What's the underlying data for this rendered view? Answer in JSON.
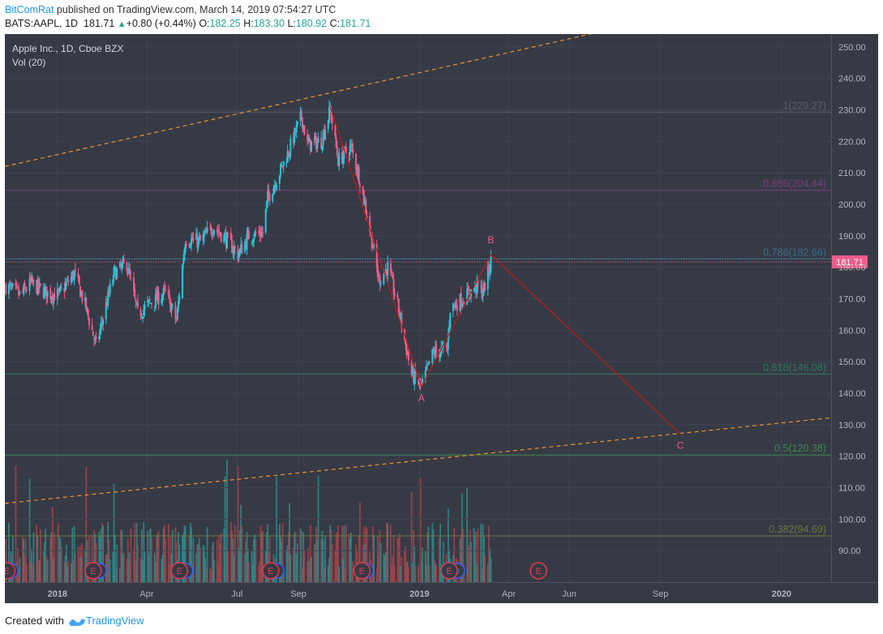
{
  "header": {
    "author": "BitComRat",
    "published_text": " published on TradingView.com, March 14, 2019 07:54:27 UTC",
    "symbol": "BATS:AAPL, 1D",
    "last": "181.71",
    "change": "+0.80 (+0.44%)",
    "o_label": "O:",
    "o_value": "182.25",
    "h_label": "H:",
    "h_value": "183.30",
    "l_label": "L:",
    "l_value": "180.92",
    "c_label": "C:",
    "c_value": "181.71"
  },
  "legend": {
    "title": "Apple Inc., 1D, Cboe BZX",
    "volume": "Vol (20)"
  },
  "footer": {
    "created_with": "Created with",
    "brand": "TradingView"
  },
  "colors": {
    "background": "#363a45",
    "up": "#26c6da",
    "down": "#ef5b8a",
    "price_tag": "#ef5b8a",
    "wave_line": "#b71c1c",
    "channel": "#f0932b",
    "vol_up": "#2e8b8b",
    "vol_down": "#a3434a"
  },
  "chart_data": {
    "type": "candlestick",
    "title": "Apple Inc., 1D, Cboe BZX",
    "y_ticks": [
      90,
      100,
      110,
      120,
      130,
      140,
      150,
      160,
      170,
      180,
      190,
      200,
      210,
      220,
      230,
      240,
      250
    ],
    "y_range": [
      80,
      252
    ],
    "x_ticks": [
      {
        "label": "2018",
        "date": "2018-01-01",
        "bold": true
      },
      {
        "label": "Apr",
        "date": "2018-04-01",
        "bold": false
      },
      {
        "label": "Jul",
        "date": "2018-07-01",
        "bold": false
      },
      {
        "label": "Sep",
        "date": "2018-09-01",
        "bold": false
      },
      {
        "label": "2019",
        "date": "2019-01-01",
        "bold": true
      },
      {
        "label": "Apr",
        "date": "2019-04-01",
        "bold": false
      },
      {
        "label": "Jun",
        "date": "2019-06-01",
        "bold": false
      },
      {
        "label": "Sep",
        "date": "2019-09-01",
        "bold": false
      },
      {
        "label": "2020",
        "date": "2020-01-01",
        "bold": true
      }
    ],
    "x_range": [
      "2017-11-09",
      "2020-02-20"
    ],
    "last_price": 181.71,
    "last_price_label": "181.71",
    "price_path": [
      [
        "2017-11-10",
        174
      ],
      [
        "2017-11-25",
        171
      ],
      [
        "2017-12-05",
        175
      ],
      [
        "2017-12-20",
        172
      ],
      [
        "2018-01-02",
        171
      ],
      [
        "2018-01-18",
        178
      ],
      [
        "2018-01-29",
        168
      ],
      [
        "2018-02-09",
        155
      ],
      [
        "2018-02-27",
        178
      ],
      [
        "2018-03-12",
        181
      ],
      [
        "2018-03-23",
        165
      ],
      [
        "2018-04-02",
        168
      ],
      [
        "2018-04-20",
        172
      ],
      [
        "2018-05-01",
        163
      ],
      [
        "2018-05-10",
        189
      ],
      [
        "2018-05-25",
        188
      ],
      [
        "2018-06-07",
        193
      ],
      [
        "2018-06-20",
        189
      ],
      [
        "2018-07-02",
        184
      ],
      [
        "2018-07-13",
        190
      ],
      [
        "2018-07-27",
        191
      ],
      [
        "2018-08-01",
        202
      ],
      [
        "2018-08-10",
        208
      ],
      [
        "2018-08-21",
        216
      ],
      [
        "2018-09-04",
        228
      ],
      [
        "2018-09-10",
        219
      ],
      [
        "2018-09-24",
        220
      ],
      [
        "2018-10-03",
        230
      ],
      [
        "2018-10-11",
        214
      ],
      [
        "2018-10-24",
        218
      ],
      [
        "2018-11-02",
        208
      ],
      [
        "2018-11-12",
        192
      ],
      [
        "2018-11-21",
        176
      ],
      [
        "2018-11-30",
        180
      ],
      [
        "2018-12-10",
        168
      ],
      [
        "2018-12-24",
        146
      ],
      [
        "2019-01-03",
        142
      ],
      [
        "2019-01-15",
        153
      ],
      [
        "2019-01-29",
        154
      ],
      [
        "2019-02-01",
        167
      ],
      [
        "2019-02-14",
        170
      ],
      [
        "2019-02-28",
        174
      ],
      [
        "2019-03-06",
        172
      ],
      [
        "2019-03-14",
        181.71
      ]
    ],
    "volume_range": [
      0,
      85
    ],
    "fib_levels": [
      {
        "label": "1(229.27)",
        "value": 229.27,
        "color": "#5d606b"
      },
      {
        "label": "0.886(204.44)",
        "value": 204.44,
        "color": "#7b3f7b"
      },
      {
        "label": "0.786(182.66)",
        "value": 182.66,
        "color": "#3e6f8e"
      },
      {
        "label": "0.618(146.08)",
        "value": 146.08,
        "color": "#2e7d5b"
      },
      {
        "label": "0.5(120.38)",
        "value": 120.38,
        "color": "#3c8c4a"
      },
      {
        "label": "0.382(94.69)",
        "value": 94.69,
        "color": "#6b7b3a"
      }
    ],
    "wave_points": [
      {
        "label": "",
        "date": "2018-10-03",
        "value": 231
      },
      {
        "label": "A",
        "date": "2019-01-03",
        "value": 142
      },
      {
        "label": "B",
        "date": "2019-03-14",
        "value": 184
      },
      {
        "label": "C",
        "date": "2019-09-21",
        "value": 127
      }
    ],
    "channel_upper": [
      [
        "2017-11-09",
        212
      ],
      [
        "2019-02-01",
        244
      ]
    ],
    "channel_lower": [
      [
        "2017-11-09",
        105
      ],
      [
        "2019-03-14",
        121
      ]
    ],
    "earnings_markers": [
      {
        "label": "E",
        "date": "2017-11-11",
        "kind": "past"
      },
      {
        "label": "E",
        "date": "2018-02-06",
        "kind": "past"
      },
      {
        "label": "E",
        "date": "2018-05-04",
        "kind": "past"
      },
      {
        "label": "E",
        "date": "2018-08-04",
        "kind": "past"
      },
      {
        "label": "E",
        "date": "2018-11-04",
        "kind": "past"
      },
      {
        "label": "E",
        "date": "2019-01-31",
        "kind": "past"
      },
      {
        "label": "E",
        "date": "2019-05-01",
        "kind": "future"
      }
    ],
    "dividend_markers": [
      {
        "label": "D",
        "date": "2017-11-15"
      },
      {
        "label": "D",
        "date": "2018-02-12"
      },
      {
        "label": "D",
        "date": "2018-05-10"
      },
      {
        "label": "D",
        "date": "2018-08-10"
      },
      {
        "label": "D",
        "date": "2018-11-08"
      },
      {
        "label": "D",
        "date": "2019-02-08"
      }
    ]
  }
}
